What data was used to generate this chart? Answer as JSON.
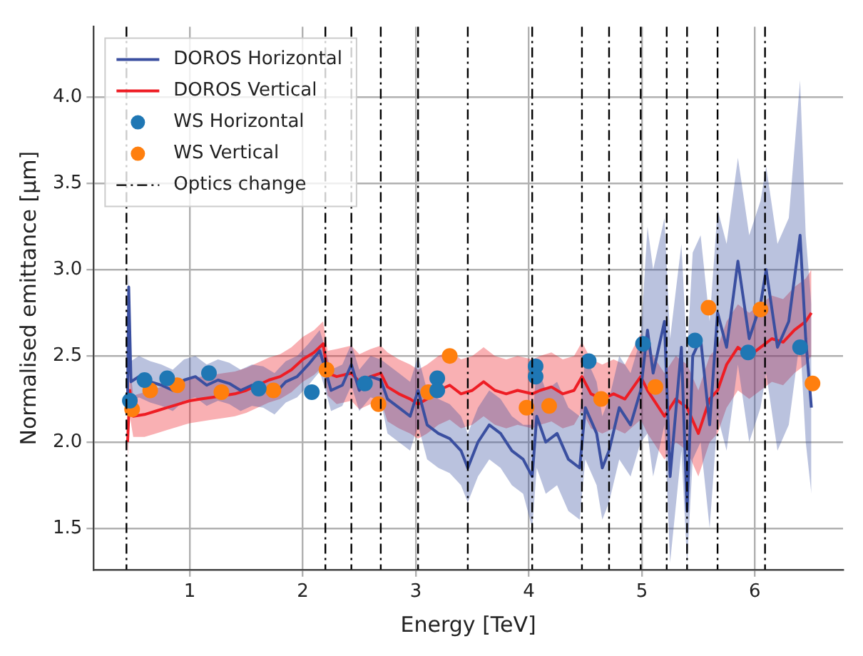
{
  "chart_data": {
    "type": "line",
    "xlabel": "Energy [TeV]",
    "ylabel": "Normalised emittance [μm]",
    "xlim": [
      0.15,
      6.78
    ],
    "ylim": [
      1.26,
      4.41
    ],
    "xticks": [
      1,
      2,
      3,
      4,
      5,
      6
    ],
    "yticks": [
      1.5,
      {
        "value": 2,
        "label": "2.0"
      },
      2.5,
      {
        "value": 3,
        "label": "3.0"
      },
      3.5,
      {
        "value": 4,
        "label": "4.0"
      }
    ],
    "grid": true,
    "legend": "top left",
    "series": [
      {
        "name": "DOROS Horizontal",
        "type": "line",
        "color": "#3a4fa0",
        "x": [
          0.45,
          0.46,
          0.48,
          0.55,
          0.65,
          0.75,
          0.85,
          0.95,
          1.05,
          1.15,
          1.25,
          1.35,
          1.45,
          1.55,
          1.65,
          1.75,
          1.85,
          1.95,
          2.05,
          2.15,
          2.2,
          2.25,
          2.35,
          2.43,
          2.5,
          2.6,
          2.69,
          2.75,
          2.85,
          2.95,
          3.02,
          3.1,
          3.2,
          3.3,
          3.4,
          3.46,
          3.55,
          3.65,
          3.75,
          3.85,
          3.95,
          4.03,
          4.07,
          4.15,
          4.25,
          4.35,
          4.45,
          4.5,
          4.6,
          4.65,
          4.71,
          4.8,
          4.9,
          4.99,
          5.05,
          5.1,
          5.2,
          5.25,
          5.35,
          5.4,
          5.45,
          5.52,
          5.6,
          5.67,
          5.75,
          5.85,
          5.95,
          6.05,
          6.1,
          6.2,
          6.3,
          6.4,
          6.45,
          6.5
        ],
        "values": [
          2.25,
          2.9,
          2.35,
          2.38,
          2.35,
          2.33,
          2.3,
          2.36,
          2.38,
          2.33,
          2.36,
          2.34,
          2.3,
          2.33,
          2.32,
          2.28,
          2.35,
          2.38,
          2.45,
          2.53,
          2.42,
          2.3,
          2.33,
          2.45,
          2.3,
          2.38,
          2.36,
          2.25,
          2.2,
          2.15,
          2.3,
          2.1,
          2.05,
          2.02,
          1.95,
          1.85,
          2.0,
          2.1,
          2.05,
          1.95,
          1.9,
          1.8,
          2.15,
          2.0,
          2.05,
          1.9,
          1.85,
          2.2,
          2.05,
          1.85,
          1.95,
          2.2,
          2.1,
          2.3,
          2.65,
          2.4,
          2.7,
          1.8,
          2.55,
          1.6,
          2.5,
          2.6,
          2.1,
          2.75,
          2.55,
          3.05,
          2.6,
          2.8,
          3.0,
          2.55,
          2.7,
          3.2,
          2.6,
          2.2
        ],
        "lower": [
          2.13,
          2.5,
          2.23,
          2.26,
          2.23,
          2.21,
          2.18,
          2.24,
          2.26,
          2.21,
          2.24,
          2.22,
          2.18,
          2.21,
          2.2,
          2.16,
          2.23,
          2.26,
          2.33,
          2.41,
          2.3,
          2.18,
          2.21,
          2.33,
          2.18,
          2.26,
          2.24,
          2.05,
          2.0,
          1.95,
          2.1,
          1.9,
          1.85,
          1.82,
          1.75,
          1.65,
          1.8,
          1.9,
          1.85,
          1.75,
          1.7,
          1.5,
          1.85,
          1.7,
          1.75,
          1.6,
          1.55,
          1.9,
          1.75,
          1.55,
          1.65,
          1.9,
          1.8,
          2.0,
          2.05,
          1.8,
          2.1,
          1.3,
          1.95,
          1.3,
          1.9,
          2.0,
          1.5,
          2.15,
          1.95,
          2.45,
          2.0,
          2.2,
          2.4,
          1.95,
          2.1,
          2.6,
          2.0,
          1.7
        ],
        "upper": [
          2.37,
          3.0,
          2.47,
          2.5,
          2.47,
          2.45,
          2.42,
          2.48,
          2.5,
          2.45,
          2.48,
          2.46,
          2.42,
          2.45,
          2.44,
          2.4,
          2.47,
          2.5,
          2.57,
          2.65,
          2.54,
          2.42,
          2.45,
          2.57,
          2.42,
          2.5,
          2.48,
          2.45,
          2.4,
          2.35,
          2.5,
          2.3,
          2.25,
          2.22,
          2.15,
          2.05,
          2.2,
          2.3,
          2.25,
          2.15,
          2.1,
          2.1,
          2.45,
          2.3,
          2.35,
          2.2,
          2.15,
          2.5,
          2.35,
          2.15,
          2.25,
          2.5,
          2.4,
          2.6,
          3.25,
          3.0,
          3.3,
          2.6,
          3.15,
          2.5,
          3.1,
          3.2,
          2.7,
          3.35,
          3.15,
          3.65,
          3.2,
          3.4,
          3.6,
          3.15,
          3.3,
          4.1,
          3.2,
          2.8
        ]
      },
      {
        "name": "DOROS Vertical",
        "type": "line",
        "color": "#ee1d24",
        "x": [
          0.45,
          0.47,
          0.5,
          0.6,
          0.7,
          0.8,
          0.9,
          1.0,
          1.1,
          1.2,
          1.3,
          1.4,
          1.5,
          1.6,
          1.7,
          1.8,
          1.9,
          2.0,
          2.1,
          2.18,
          2.22,
          2.3,
          2.43,
          2.5,
          2.6,
          2.69,
          2.75,
          2.85,
          2.95,
          3.02,
          3.1,
          3.2,
          3.3,
          3.4,
          3.5,
          3.6,
          3.7,
          3.8,
          3.9,
          4.03,
          4.1,
          4.2,
          4.3,
          4.4,
          4.47,
          4.55,
          4.65,
          4.75,
          4.85,
          4.99,
          5.05,
          5.1,
          5.2,
          5.3,
          5.4,
          5.5,
          5.6,
          5.67,
          5.75,
          5.85,
          5.95,
          6.05,
          6.15,
          6.25,
          6.35,
          6.45,
          6.5
        ],
        "values": [
          2.0,
          2.3,
          2.15,
          2.16,
          2.18,
          2.2,
          2.22,
          2.24,
          2.25,
          2.26,
          2.27,
          2.28,
          2.3,
          2.33,
          2.36,
          2.38,
          2.42,
          2.48,
          2.52,
          2.57,
          2.4,
          2.38,
          2.4,
          2.35,
          2.38,
          2.4,
          2.32,
          2.28,
          2.25,
          2.22,
          2.25,
          2.3,
          2.33,
          2.28,
          2.3,
          2.35,
          2.3,
          2.28,
          2.3,
          2.28,
          2.3,
          2.32,
          2.28,
          2.3,
          2.38,
          2.28,
          2.25,
          2.28,
          2.25,
          2.38,
          2.3,
          2.25,
          2.15,
          2.25,
          2.2,
          2.05,
          2.25,
          2.3,
          2.45,
          2.55,
          2.5,
          2.55,
          2.6,
          2.58,
          2.65,
          2.7,
          2.75
        ],
        "lower": [
          1.9,
          2.15,
          2.03,
          2.03,
          2.05,
          2.07,
          2.09,
          2.11,
          2.12,
          2.13,
          2.14,
          2.15,
          2.17,
          2.2,
          2.23,
          2.25,
          2.29,
          2.35,
          2.39,
          2.44,
          2.27,
          2.22,
          2.24,
          2.19,
          2.22,
          2.24,
          2.12,
          2.08,
          2.05,
          2.02,
          2.05,
          2.1,
          2.13,
          2.08,
          2.1,
          2.15,
          2.1,
          2.08,
          2.1,
          2.08,
          2.1,
          2.12,
          2.08,
          2.1,
          2.18,
          2.08,
          2.05,
          2.08,
          2.05,
          2.13,
          2.05,
          2.0,
          1.9,
          2.0,
          1.95,
          1.8,
          2.0,
          2.05,
          2.2,
          2.3,
          2.25,
          2.3,
          2.35,
          2.33,
          2.4,
          2.45,
          2.5
        ],
        "upper": [
          2.1,
          2.45,
          2.27,
          2.29,
          2.31,
          2.33,
          2.35,
          2.37,
          2.38,
          2.39,
          2.4,
          2.41,
          2.43,
          2.46,
          2.49,
          2.51,
          2.55,
          2.61,
          2.65,
          2.7,
          2.53,
          2.54,
          2.56,
          2.51,
          2.54,
          2.56,
          2.52,
          2.48,
          2.45,
          2.42,
          2.45,
          2.5,
          2.53,
          2.48,
          2.5,
          2.55,
          2.5,
          2.48,
          2.5,
          2.48,
          2.5,
          2.52,
          2.48,
          2.5,
          2.58,
          2.48,
          2.45,
          2.48,
          2.45,
          2.63,
          2.55,
          2.5,
          2.4,
          2.5,
          2.45,
          2.3,
          2.5,
          2.55,
          2.7,
          2.8,
          2.75,
          2.8,
          2.85,
          2.83,
          2.9,
          2.95,
          3.0
        ]
      },
      {
        "name": "WS Horizontal",
        "type": "scatter",
        "color": "#1f77b4",
        "marker": "circle",
        "x": [
          0.47,
          0.6,
          0.8,
          1.17,
          1.61,
          2.08,
          2.55,
          3.19,
          3.19,
          4.06,
          4.06,
          4.53,
          5.01,
          5.47,
          5.94,
          6.4
        ],
        "values": [
          2.24,
          2.36,
          2.37,
          2.4,
          2.31,
          2.29,
          2.34,
          2.37,
          2.3,
          2.44,
          2.38,
          2.47,
          2.57,
          2.59,
          2.52,
          2.55
        ]
      },
      {
        "name": "WS Vertical",
        "type": "scatter",
        "color": "#ff7f0e",
        "marker": "circle",
        "x": [
          0.49,
          0.65,
          0.89,
          1.28,
          1.74,
          2.21,
          2.67,
          3.11,
          3.3,
          3.98,
          4.18,
          4.64,
          5.12,
          5.59,
          6.05,
          6.51
        ],
        "values": [
          2.19,
          2.3,
          2.33,
          2.29,
          2.3,
          2.42,
          2.22,
          2.29,
          2.5,
          2.2,
          2.21,
          2.25,
          2.32,
          2.78,
          2.77,
          2.34
        ]
      }
    ],
    "ref_lines": [
      {
        "axis": "x",
        "value": 0.44,
        "label": "Optics change",
        "color": "#000000",
        "line_style": "dashed"
      },
      {
        "axis": "x",
        "value": 2.2,
        "color": "#000000",
        "line_style": "dashed"
      },
      {
        "axis": "x",
        "value": 2.43,
        "color": "#000000",
        "line_style": "dashed"
      },
      {
        "axis": "x",
        "value": 2.69,
        "color": "#000000",
        "line_style": "dashed"
      },
      {
        "axis": "x",
        "value": 3.02,
        "color": "#000000",
        "line_style": "dashed"
      },
      {
        "axis": "x",
        "value": 3.46,
        "color": "#000000",
        "line_style": "dashed"
      },
      {
        "axis": "x",
        "value": 4.03,
        "color": "#000000",
        "line_style": "dashed"
      },
      {
        "axis": "x",
        "value": 4.47,
        "color": "#000000",
        "line_style": "dashed"
      },
      {
        "axis": "x",
        "value": 4.71,
        "color": "#000000",
        "line_style": "dashed"
      },
      {
        "axis": "x",
        "value": 4.99,
        "color": "#000000",
        "line_style": "dashed"
      },
      {
        "axis": "x",
        "value": 5.22,
        "color": "#000000",
        "line_style": "dashed"
      },
      {
        "axis": "x",
        "value": 5.4,
        "color": "#000000",
        "line_style": "dashed"
      },
      {
        "axis": "x",
        "value": 5.67,
        "color": "#000000",
        "line_style": "dashed"
      },
      {
        "axis": "x",
        "value": 6.09,
        "color": "#000000",
        "line_style": "dashed"
      }
    ]
  }
}
